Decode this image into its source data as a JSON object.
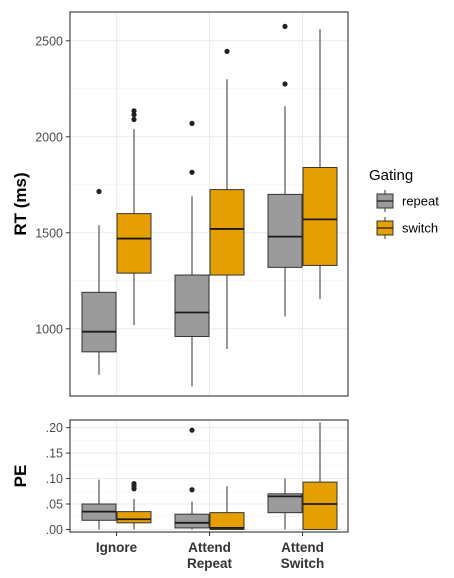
{
  "colors": {
    "repeat": "#9b9b9b",
    "switch": "#e69f00",
    "grid": "#ebebeb",
    "panel_border": "#333333",
    "outlier": "#222222"
  },
  "legend": {
    "title": "Gating",
    "entries": [
      "repeat",
      "switch"
    ],
    "placement": "right"
  },
  "x_labels": [
    [
      "Ignore"
    ],
    [
      "Attend",
      "Repeat"
    ],
    [
      "Attend",
      "Switch"
    ]
  ],
  "chart_data": [
    {
      "type": "boxplot",
      "panel": "top",
      "ylabel": "RT (ms)",
      "ylim": [
        650,
        2650
      ],
      "yticks": [
        1000,
        1500,
        2000,
        2500
      ],
      "grid": true,
      "series": [
        {
          "name": "repeat",
          "boxes": [
            {
              "category": "Ignore",
              "whisker_low": 760,
              "q1": 880,
              "median": 985,
              "q3": 1190,
              "whisker_high": 1540,
              "outliers": [
                1715
              ]
            },
            {
              "category": "Attend Repeat",
              "whisker_low": 700,
              "q1": 960,
              "median": 1085,
              "q3": 1280,
              "whisker_high": 1690,
              "outliers": [
                1815,
                2070
              ]
            },
            {
              "category": "Attend Switch",
              "whisker_low": 1065,
              "q1": 1320,
              "median": 1480,
              "q3": 1700,
              "whisker_high": 2160,
              "outliers": [
                2275,
                2575
              ]
            }
          ]
        },
        {
          "name": "switch",
          "boxes": [
            {
              "category": "Ignore",
              "whisker_low": 1020,
              "q1": 1290,
              "median": 1470,
              "q3": 1600,
              "whisker_high": 2040,
              "outliers": [
                2090,
                2115,
                2135
              ]
            },
            {
              "category": "Attend Repeat",
              "whisker_low": 895,
              "q1": 1280,
              "median": 1520,
              "q3": 1725,
              "whisker_high": 2300,
              "outliers": [
                2445
              ]
            },
            {
              "category": "Attend Switch",
              "whisker_low": 1155,
              "q1": 1330,
              "median": 1570,
              "q3": 1840,
              "whisker_high": 2560,
              "outliers": []
            }
          ]
        }
      ]
    },
    {
      "type": "boxplot",
      "panel": "bottom",
      "ylabel": "PE",
      "ylim": [
        -0.005,
        0.215
      ],
      "yticks": [
        0.0,
        0.05,
        0.1,
        0.15,
        0.2
      ],
      "ytick_labels": [
        ".00",
        ".05",
        ".10",
        ".15",
        ".20"
      ],
      "grid": true,
      "series": [
        {
          "name": "repeat",
          "boxes": [
            {
              "category": "Ignore",
              "whisker_low": 0.0,
              "q1": 0.018,
              "median": 0.035,
              "q3": 0.05,
              "whisker_high": 0.098,
              "outliers": []
            },
            {
              "category": "Attend Repeat",
              "whisker_low": 0.0,
              "q1": 0.003,
              "median": 0.013,
              "q3": 0.03,
              "whisker_high": 0.055,
              "outliers": [
                0.078,
                0.195
              ]
            },
            {
              "category": "Attend Switch",
              "whisker_low": 0.0,
              "q1": 0.033,
              "median": 0.065,
              "q3": 0.07,
              "whisker_high": 0.1,
              "outliers": []
            }
          ]
        },
        {
          "name": "switch",
          "boxes": [
            {
              "category": "Ignore",
              "whisker_low": 0.0,
              "q1": 0.013,
              "median": 0.02,
              "q3": 0.035,
              "whisker_high": 0.06,
              "outliers": [
                0.08,
                0.085,
                0.09
              ]
            },
            {
              "category": "Attend Repeat",
              "whisker_low": 0.0,
              "q1": 0.0,
              "median": 0.003,
              "q3": 0.033,
              "whisker_high": 0.085,
              "outliers": []
            },
            {
              "category": "Attend Switch",
              "whisker_low": 0.0,
              "q1": 0.0,
              "median": 0.05,
              "q3": 0.093,
              "whisker_high": 0.21,
              "outliers": []
            }
          ]
        }
      ]
    }
  ]
}
